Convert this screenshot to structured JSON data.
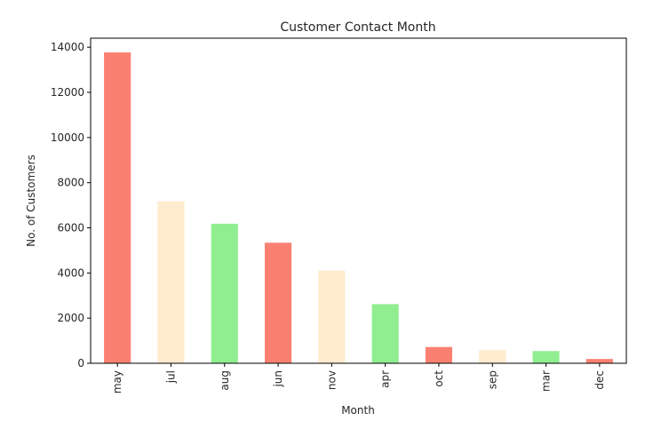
{
  "chart_data": {
    "type": "bar",
    "title": "Customer Contact Month",
    "xlabel": "Month",
    "ylabel": "No. of Customers",
    "categories": [
      "may",
      "jul",
      "aug",
      "jun",
      "nov",
      "apr",
      "oct",
      "sep",
      "mar",
      "dec"
    ],
    "values": [
      13770,
      7175,
      6180,
      5340,
      4100,
      2620,
      720,
      580,
      540,
      190
    ],
    "colors": [
      "#fa8072",
      "#ffebcd",
      "#90ee90",
      "#fa8072",
      "#ffebcd",
      "#90ee90",
      "#fa8072",
      "#ffebcd",
      "#90ee90",
      "#fa8072"
    ],
    "ylim": [
      0,
      14400
    ],
    "yticks": [
      0,
      2000,
      4000,
      6000,
      8000,
      10000,
      12000,
      14000
    ],
    "grid": false,
    "legend": "none"
  }
}
